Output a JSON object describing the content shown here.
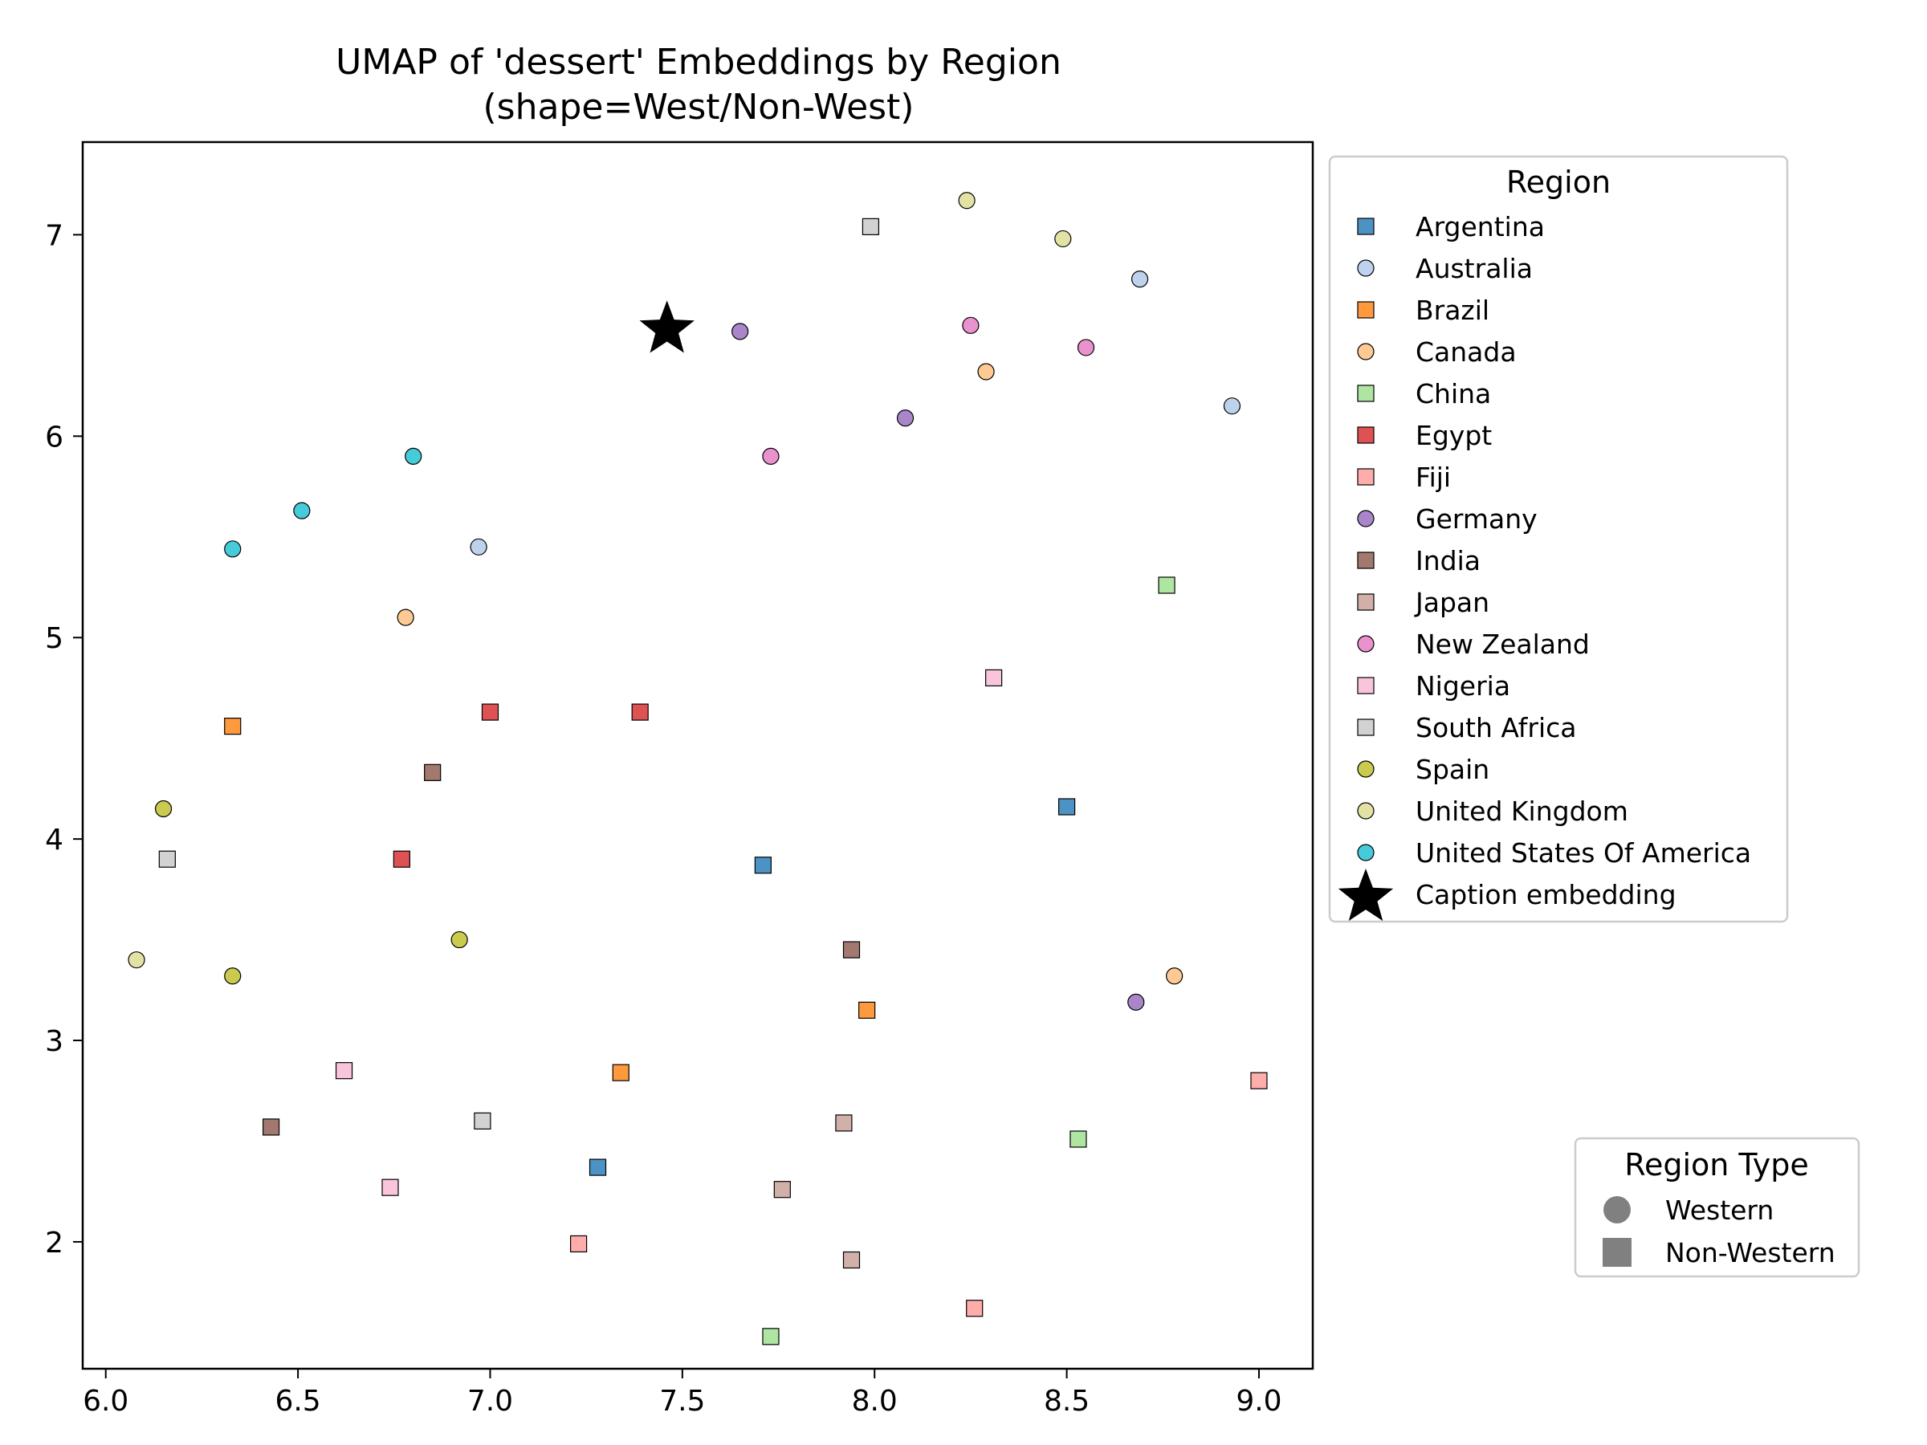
{
  "chart_data": {
    "type": "scatter",
    "title": "UMAP of 'dessert' Embeddings by Region",
    "subtitle": "(shape=West/Non-West)",
    "xlabel": "",
    "ylabel": "",
    "xlim": [
      5.94,
      9.14
    ],
    "ylim": [
      1.37,
      7.46
    ],
    "xticks": [
      6.0,
      6.5,
      7.0,
      7.5,
      8.0,
      8.5,
      9.0
    ],
    "xtick_labels": [
      "6.0",
      "6.5",
      "7.0",
      "7.5",
      "8.0",
      "8.5",
      "9.0"
    ],
    "yticks": [
      2,
      3,
      4,
      5,
      6,
      7
    ],
    "ytick_labels": [
      "2",
      "3",
      "4",
      "5",
      "6",
      "7"
    ],
    "grid": false,
    "legend": {
      "title": "Region",
      "placement": "outside-upper-right",
      "entries": [
        "Argentina",
        "Australia",
        "Brazil",
        "Canada",
        "China",
        "Egypt",
        "Fiji",
        "Germany",
        "India",
        "Japan",
        "New Zealand",
        "Nigeria",
        "South Africa",
        "Spain",
        "United Kingdom",
        "United States Of America",
        "Caption embedding"
      ]
    },
    "shape_legend": {
      "title": "Region Type",
      "placement": "outside-lower-right",
      "entries": [
        {
          "label": "Western",
          "marker": "circle"
        },
        {
          "label": "Non-Western",
          "marker": "square"
        }
      ]
    },
    "series": [
      {
        "name": "Argentina",
        "marker": "square",
        "color": "#1f77b4",
        "points": [
          [
            8.5,
            4.16
          ],
          [
            7.71,
            3.87
          ],
          [
            7.28,
            2.37
          ]
        ]
      },
      {
        "name": "Australia",
        "marker": "circle",
        "color": "#aec7e8",
        "points": [
          [
            8.69,
            6.78
          ],
          [
            8.93,
            6.15
          ],
          [
            6.97,
            5.45
          ]
        ]
      },
      {
        "name": "Brazil",
        "marker": "square",
        "color": "#ff7f0e",
        "points": [
          [
            6.33,
            4.56
          ],
          [
            7.98,
            3.15
          ],
          [
            7.34,
            2.84
          ]
        ]
      },
      {
        "name": "Canada",
        "marker": "circle",
        "color": "#ffbb78",
        "points": [
          [
            8.29,
            6.32
          ],
          [
            6.78,
            5.1
          ],
          [
            8.78,
            3.32
          ]
        ]
      },
      {
        "name": "China",
        "marker": "square",
        "color": "#98df8a",
        "points": [
          [
            8.76,
            5.26
          ],
          [
            8.53,
            2.51
          ],
          [
            7.73,
            1.53
          ]
        ]
      },
      {
        "name": "Egypt",
        "marker": "square",
        "color": "#d62728",
        "points": [
          [
            7.0,
            4.63
          ],
          [
            7.39,
            4.63
          ],
          [
            6.77,
            3.9
          ]
        ]
      },
      {
        "name": "Fiji",
        "marker": "square",
        "color": "#ff9896",
        "points": [
          [
            9.0,
            2.8
          ],
          [
            7.23,
            1.99
          ],
          [
            8.26,
            1.67
          ]
        ]
      },
      {
        "name": "Germany",
        "marker": "circle",
        "color": "#9467bd",
        "points": [
          [
            7.65,
            6.52
          ],
          [
            8.08,
            6.09
          ],
          [
            8.68,
            3.19
          ]
        ]
      },
      {
        "name": "India",
        "marker": "square",
        "color": "#8c564b",
        "points": [
          [
            6.85,
            4.33
          ],
          [
            7.94,
            3.45
          ],
          [
            6.43,
            2.57
          ]
        ]
      },
      {
        "name": "Japan",
        "marker": "square",
        "color": "#c49c94",
        "points": [
          [
            7.92,
            2.59
          ],
          [
            7.76,
            2.26
          ],
          [
            7.94,
            1.91
          ]
        ]
      },
      {
        "name": "New Zealand",
        "marker": "circle",
        "color": "#e377c2",
        "points": [
          [
            8.25,
            6.55
          ],
          [
            8.55,
            6.44
          ],
          [
            7.73,
            5.9
          ]
        ]
      },
      {
        "name": "Nigeria",
        "marker": "square",
        "color": "#f7b6d2",
        "points": [
          [
            8.31,
            4.8
          ],
          [
            6.62,
            2.85
          ],
          [
            6.74,
            2.27
          ]
        ]
      },
      {
        "name": "South Africa",
        "marker": "square",
        "color": "#c7c7c7",
        "points": [
          [
            7.99,
            7.04
          ],
          [
            6.16,
            3.9
          ],
          [
            6.98,
            2.6
          ]
        ]
      },
      {
        "name": "Spain",
        "marker": "circle",
        "color": "#bcbd22",
        "points": [
          [
            6.15,
            4.15
          ],
          [
            6.92,
            3.5
          ],
          [
            6.33,
            3.32
          ]
        ]
      },
      {
        "name": "United Kingdom",
        "marker": "circle",
        "color": "#dbdb8d",
        "points": [
          [
            8.24,
            7.17
          ],
          [
            8.49,
            6.98
          ],
          [
            6.08,
            3.4
          ]
        ]
      },
      {
        "name": "United States Of America",
        "marker": "circle",
        "color": "#17becf",
        "points": [
          [
            6.8,
            5.9
          ],
          [
            6.51,
            5.63
          ],
          [
            6.33,
            5.44
          ]
        ]
      },
      {
        "name": "Caption embedding",
        "marker": "star",
        "color": "#000000",
        "points": [
          [
            7.46,
            6.53
          ]
        ]
      }
    ]
  }
}
